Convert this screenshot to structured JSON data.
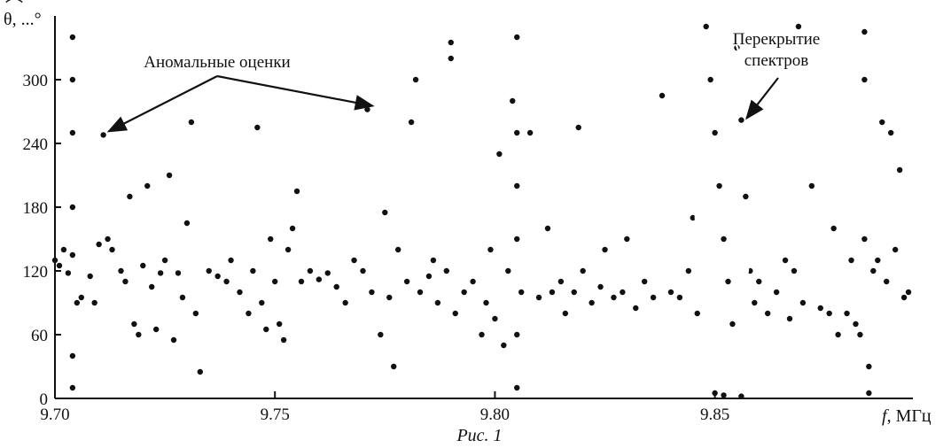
{
  "chart_data": {
    "type": "scatter",
    "title": "",
    "xlabel": "f, МГц",
    "xlabel_italic_part": "f",
    "xlabel_unit": ", МГц",
    "ylabel": "θ̂, ...°",
    "ylabel_symbol": "θ",
    "ylabel_unit": ", ...°",
    "xlim": [
      9.7,
      9.895
    ],
    "ylim": [
      0,
      360
    ],
    "x_ticks": [
      9.7,
      9.75,
      9.8,
      9.85
    ],
    "x_tick_labels": [
      "9.70",
      "9.75",
      "9.80",
      "9.85"
    ],
    "y_ticks": [
      0,
      60,
      120,
      180,
      240,
      300
    ],
    "y_tick_labels": [
      "0",
      "60",
      "120",
      "180",
      "240",
      "300"
    ],
    "grid": false,
    "marker_color": "#111111",
    "caption": "Рис. 1",
    "annotations": [
      {
        "name": "anomalous-estimates",
        "text": "Аномальные оценки",
        "targets": [
          [
            9.711,
            248
          ],
          [
            9.771,
            272
          ]
        ]
      },
      {
        "name": "spectrum-overlap",
        "text_lines": [
          "Перекрытие",
          "спектров"
        ],
        "target": [
          9.856,
          262
        ]
      }
    ],
    "ellipse": {
      "center": [
        9.852,
        200
      ],
      "rx": 0.0065,
      "ry": 148
    },
    "series": [
      {
        "points": [
          [
            9.7,
            130
          ],
          [
            9.701,
            125
          ],
          [
            9.702,
            140
          ],
          [
            9.703,
            118
          ],
          [
            9.704,
            135
          ],
          [
            9.705,
            90
          ],
          [
            9.706,
            95
          ],
          [
            9.704,
            340
          ],
          [
            9.704,
            300
          ],
          [
            9.704,
            250
          ],
          [
            9.704,
            180
          ],
          [
            9.704,
            40
          ],
          [
            9.704,
            10
          ],
          [
            9.708,
            115
          ],
          [
            9.709,
            90
          ],
          [
            9.71,
            145
          ],
          [
            9.711,
            248
          ],
          [
            9.712,
            150
          ],
          [
            9.713,
            140
          ],
          [
            9.715,
            120
          ],
          [
            9.716,
            110
          ],
          [
            9.717,
            190
          ],
          [
            9.718,
            70
          ],
          [
            9.719,
            60
          ],
          [
            9.72,
            125
          ],
          [
            9.721,
            200
          ],
          [
            9.722,
            105
          ],
          [
            9.723,
            65
          ],
          [
            9.724,
            118
          ],
          [
            9.725,
            130
          ],
          [
            9.726,
            210
          ],
          [
            9.727,
            55
          ],
          [
            9.728,
            118
          ],
          [
            9.729,
            95
          ],
          [
            9.73,
            165
          ],
          [
            9.731,
            260
          ],
          [
            9.732,
            80
          ],
          [
            9.733,
            25
          ],
          [
            9.735,
            120
          ],
          [
            9.737,
            115
          ],
          [
            9.739,
            110
          ],
          [
            9.74,
            130
          ],
          [
            9.742,
            100
          ],
          [
            9.744,
            80
          ],
          [
            9.745,
            120
          ],
          [
            9.746,
            255
          ],
          [
            9.747,
            90
          ],
          [
            9.748,
            65
          ],
          [
            9.749,
            150
          ],
          [
            9.75,
            110
          ],
          [
            9.751,
            70
          ],
          [
            9.752,
            55
          ],
          [
            9.753,
            140
          ],
          [
            9.754,
            160
          ],
          [
            9.755,
            195
          ],
          [
            9.756,
            110
          ],
          [
            9.758,
            120
          ],
          [
            9.76,
            112
          ],
          [
            9.762,
            118
          ],
          [
            9.764,
            105
          ],
          [
            9.766,
            90
          ],
          [
            9.768,
            130
          ],
          [
            9.77,
            120
          ],
          [
            9.771,
            272
          ],
          [
            9.772,
            100
          ],
          [
            9.774,
            60
          ],
          [
            9.775,
            175
          ],
          [
            9.776,
            95
          ],
          [
            9.777,
            30
          ],
          [
            9.778,
            140
          ],
          [
            9.78,
            110
          ],
          [
            9.781,
            260
          ],
          [
            9.782,
            300
          ],
          [
            9.783,
            100
          ],
          [
            9.785,
            115
          ],
          [
            9.786,
            130
          ],
          [
            9.787,
            90
          ],
          [
            9.789,
            120
          ],
          [
            9.79,
            335
          ],
          [
            9.79,
            320
          ],
          [
            9.791,
            80
          ],
          [
            9.793,
            100
          ],
          [
            9.795,
            110
          ],
          [
            9.797,
            60
          ],
          [
            9.798,
            90
          ],
          [
            9.799,
            140
          ],
          [
            9.8,
            75
          ],
          [
            9.801,
            230
          ],
          [
            9.802,
            50
          ],
          [
            9.803,
            120
          ],
          [
            9.804,
            280
          ],
          [
            9.805,
            340
          ],
          [
            9.805,
            250
          ],
          [
            9.805,
            200
          ],
          [
            9.805,
            150
          ],
          [
            9.805,
            60
          ],
          [
            9.805,
            10
          ],
          [
            9.806,
            100
          ],
          [
            9.808,
            250
          ],
          [
            9.81,
            95
          ],
          [
            9.812,
            160
          ],
          [
            9.813,
            100
          ],
          [
            9.815,
            110
          ],
          [
            9.816,
            80
          ],
          [
            9.818,
            100
          ],
          [
            9.819,
            255
          ],
          [
            9.82,
            120
          ],
          [
            9.822,
            90
          ],
          [
            9.824,
            105
          ],
          [
            9.825,
            140
          ],
          [
            9.827,
            95
          ],
          [
            9.829,
            100
          ],
          [
            9.83,
            150
          ],
          [
            9.832,
            85
          ],
          [
            9.834,
            110
          ],
          [
            9.836,
            95
          ],
          [
            9.838,
            285
          ],
          [
            9.84,
            100
          ],
          [
            9.842,
            95
          ],
          [
            9.844,
            120
          ],
          [
            9.845,
            170
          ],
          [
            9.846,
            80
          ],
          [
            9.848,
            350
          ],
          [
            9.849,
            300
          ],
          [
            9.85,
            250
          ],
          [
            9.851,
            200
          ],
          [
            9.852,
            150
          ],
          [
            9.853,
            110
          ],
          [
            9.854,
            70
          ],
          [
            9.855,
            330
          ],
          [
            9.856,
            262
          ],
          [
            9.857,
            190
          ],
          [
            9.858,
            120
          ],
          [
            9.859,
            90
          ],
          [
            9.85,
            5
          ],
          [
            9.852,
            3
          ],
          [
            9.856,
            2
          ],
          [
            9.86,
            110
          ],
          [
            9.862,
            80
          ],
          [
            9.864,
            100
          ],
          [
            9.866,
            130
          ],
          [
            9.867,
            75
          ],
          [
            9.868,
            120
          ],
          [
            9.869,
            350
          ],
          [
            9.87,
            90
          ],
          [
            9.872,
            200
          ],
          [
            9.874,
            85
          ],
          [
            9.876,
            80
          ],
          [
            9.877,
            160
          ],
          [
            9.878,
            60
          ],
          [
            9.88,
            80
          ],
          [
            9.881,
            130
          ],
          [
            9.882,
            70
          ],
          [
            9.883,
            60
          ],
          [
            9.884,
            345
          ],
          [
            9.884,
            300
          ],
          [
            9.884,
            150
          ],
          [
            9.885,
            30
          ],
          [
            9.885,
            5
          ],
          [
            9.886,
            120
          ],
          [
            9.887,
            130
          ],
          [
            9.888,
            260
          ],
          [
            9.889,
            110
          ],
          [
            9.89,
            250
          ],
          [
            9.891,
            140
          ],
          [
            9.892,
            215
          ],
          [
            9.893,
            95
          ],
          [
            9.894,
            100
          ]
        ]
      }
    ]
  }
}
